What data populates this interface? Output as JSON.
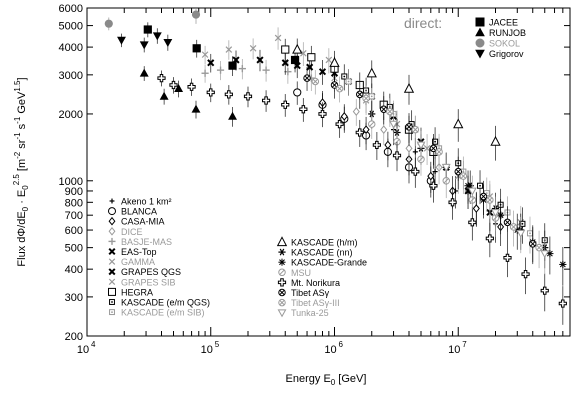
{
  "chart_data": {
    "type": "scatter",
    "title": "",
    "xlabel": "Energy E₀ [GeV]",
    "ylabel": "Flux dΦ/dE₀ · E₀^2.5 [m⁻² sr⁻¹ s⁻¹ GeV¹·⁵]",
    "ylabel_parts": {
      "main": "Flux dΦ/dE",
      "sub0": "0",
      "dot": " · E",
      "sub1": "0",
      "sup1": "2.5",
      "units_a": " [m",
      "sup2": "-2",
      "units_b": " sr",
      "sup3": "-1",
      "units_c": " s",
      "sup4": "-1",
      "units_d": " GeV",
      "sup5": "1.5",
      "units_e": "]"
    },
    "xlabel_parts": {
      "main": "Energy E",
      "sub": "0",
      "units": " [GeV]"
    },
    "x_scale": "log",
    "y_scale": "log",
    "xlim": [
      10000,
      80000000
    ],
    "ylim": [
      200,
      6000
    ],
    "x_tick_labels": [
      {
        "value": 10000,
        "base": "10",
        "exp": "4"
      },
      {
        "value": 100000,
        "base": "10",
        "exp": "5"
      },
      {
        "value": 1000000,
        "base": "10",
        "exp": "6"
      },
      {
        "value": 10000000,
        "base": "10",
        "exp": "7"
      }
    ],
    "y_tick_labels": [
      {
        "value": 200,
        "label": "200"
      },
      {
        "value": 300,
        "label": "300"
      },
      {
        "value": 400,
        "label": "400"
      },
      {
        "value": 500,
        "label": "500"
      },
      {
        "value": 600,
        "label": "600"
      },
      {
        "value": 700,
        "label": "700"
      },
      {
        "value": 800,
        "label": "800"
      },
      {
        "value": 900,
        "label": "900"
      },
      {
        "value": 1000,
        "label": "1000"
      },
      {
        "value": 2000,
        "label": "2000"
      },
      {
        "value": 3000,
        "label": "3000"
      },
      {
        "value": 4000,
        "label": "4000"
      },
      {
        "value": 5000,
        "label": "5000"
      },
      {
        "value": 6000,
        "label": "6000"
      }
    ],
    "grid": false,
    "direct_legend_title": "direct:",
    "legend_direct": [
      {
        "name": "JACEE",
        "marker": "square-filled",
        "color": "#000000"
      },
      {
        "name": "RUNJOB",
        "marker": "triangle-up-filled",
        "color": "#000000"
      },
      {
        "name": "SOKOL",
        "marker": "circle-filled",
        "color": "#8a8a8a"
      },
      {
        "name": "Grigorov",
        "marker": "triangle-down-filled",
        "color": "#000000"
      }
    ],
    "legend_left": [
      {
        "name": "Akeno 1 km²",
        "marker": "plus-small",
        "color": "#000000"
      },
      {
        "name": "BLANCA",
        "marker": "circle-open",
        "color": "#000000"
      },
      {
        "name": "CASA-MIA",
        "marker": "diamond-open",
        "color": "#000000"
      },
      {
        "name": "DICE",
        "marker": "diamond-open",
        "color": "#9a9a9a"
      },
      {
        "name": "BASJE-MAS",
        "marker": "plus",
        "color": "#9a9a9a"
      },
      {
        "name": "EAS-Top",
        "marker": "cross-bold",
        "color": "#000000"
      },
      {
        "name": "GAMMA",
        "marker": "cross",
        "color": "#9a9a9a"
      },
      {
        "name": "GRAPES QGS",
        "marker": "cross-bold",
        "color": "#000000"
      },
      {
        "name": "GRAPES SIB",
        "marker": "cross",
        "color": "#9a9a9a"
      },
      {
        "name": "HEGRA",
        "marker": "square-open",
        "color": "#000000"
      },
      {
        "name": "KASCADE (e/m QGS)",
        "marker": "square-dot",
        "color": "#000000"
      },
      {
        "name": "KASCADE (e/m SIB)",
        "marker": "square-dot",
        "color": "#9a9a9a"
      }
    ],
    "legend_right": [
      {
        "name": "KASCADE (h/m)",
        "marker": "triangle-up-open",
        "color": "#000000"
      },
      {
        "name": "KASCADE (nn)",
        "marker": "asterisk",
        "color": "#000000"
      },
      {
        "name": "KASCADE-Grande",
        "marker": "star",
        "color": "#000000"
      },
      {
        "name": "MSU",
        "marker": "circle-slash",
        "color": "#9a9a9a"
      },
      {
        "name": "Mt. Norikura",
        "marker": "open-cross",
        "color": "#000000"
      },
      {
        "name": "Tibet ASγ",
        "marker": "circle-cross",
        "color": "#000000"
      },
      {
        "name": "Tibet ASγ-III",
        "marker": "circle-cross",
        "color": "#9a9a9a"
      },
      {
        "name": "Tunka-25",
        "marker": "triangle-down-open",
        "color": "#9a9a9a"
      }
    ],
    "series": [
      {
        "name": "JACEE",
        "marker": "square-filled",
        "color": "#000000",
        "x": [
          31000,
          77000,
          150000,
          480000
        ],
        "y": [
          4800,
          3950,
          3300,
          3500
        ]
      },
      {
        "name": "RUNJOB",
        "marker": "triangle-up-filled",
        "color": "#000000",
        "x": [
          29000,
          42000,
          55000,
          76000,
          150000
        ],
        "y": [
          3050,
          2400,
          2600,
          2100,
          1950
        ]
      },
      {
        "name": "SOKOL",
        "marker": "circle-filled",
        "color": "#8a8a8a",
        "x": [
          15000,
          76000
        ],
        "y": [
          5100,
          5600
        ]
      },
      {
        "name": "Grigorov",
        "marker": "triangle-down-filled",
        "color": "#000000",
        "x": [
          19000,
          29000,
          37000,
          45000
        ],
        "y": [
          4300,
          4100,
          4500,
          4200
        ]
      },
      {
        "name": "Akeno 1 km²",
        "marker": "plus-small",
        "color": "#000000",
        "x": [
          3000000,
          4500000,
          6500000,
          9500000,
          14000000,
          20000000
        ],
        "y": [
          1700,
          1350,
          1100,
          900,
          760,
          640
        ]
      },
      {
        "name": "BLANCA",
        "marker": "circle-open",
        "color": "#000000",
        "x": [
          500000,
          800000,
          1200000,
          1800000,
          2700000,
          4000000,
          6000000
        ],
        "y": [
          2500,
          2200,
          1900,
          1600,
          1350,
          1150,
          1000
        ]
      },
      {
        "name": "CASA-MIA",
        "marker": "diamond-open",
        "color": "#000000",
        "x": [
          800000,
          1200000,
          1800000,
          2700000,
          4000000,
          6000000,
          9000000,
          14000000,
          22000000
        ],
        "y": [
          2250,
          1950,
          1700,
          1450,
          1250,
          1050,
          900,
          750,
          620
        ]
      },
      {
        "name": "DICE",
        "marker": "diamond-open",
        "color": "#9a9a9a",
        "x": [
          1500000,
          2500000,
          4000000,
          7000000,
          12000000,
          22000000
        ],
        "y": [
          2050,
          1700,
          1400,
          1150,
          900,
          700
        ]
      },
      {
        "name": "BASJE-MAS",
        "marker": "plus",
        "color": "#9a9a9a",
        "x": [
          90000,
          120000,
          180000,
          280000,
          420000,
          650000
        ],
        "y": [
          3050,
          3150,
          3200,
          3150,
          3100,
          2900
        ]
      },
      {
        "name": "EAS-Top",
        "marker": "cross-bold",
        "color": "#000000",
        "x": [
          500000,
          800000,
          1300000,
          2000000,
          3000000,
          5000000,
          8000000,
          12000000,
          18000000
        ],
        "y": [
          3300,
          3100,
          2800,
          2400,
          1950,
          1500,
          1150,
          900,
          720
        ]
      },
      {
        "name": "GAMMA",
        "marker": "cross",
        "color": "#9a9a9a",
        "x": [
          1000000,
          1800000,
          3200000,
          5600000,
          10000000,
          18000000,
          32000000
        ],
        "y": [
          2900,
          2300,
          1800,
          1400,
          1050,
          850,
          650
        ]
      },
      {
        "name": "GRAPES QGS",
        "marker": "cross-bold",
        "color": "#000000",
        "x": [
          100000,
          160000,
          250000,
          400000,
          630000,
          1000000
        ],
        "y": [
          3400,
          3500,
          3500,
          3400,
          3250,
          3050
        ]
      },
      {
        "name": "GRAPES SIB",
        "marker": "cross",
        "color": "#9a9a9a",
        "x": [
          90000,
          140000,
          220000,
          350000,
          560000,
          900000
        ],
        "y": [
          3700,
          3900,
          3950,
          4400,
          3750,
          3500
        ]
      },
      {
        "name": "HEGRA",
        "marker": "square-open",
        "color": "#000000",
        "x": [
          400000,
          650000,
          1000000,
          1600000,
          2500000,
          4000000,
          6300000
        ],
        "y": [
          3900,
          3600,
          3200,
          2700,
          2200,
          1700,
          1350
        ]
      },
      {
        "name": "KASCADE (e/m QGS)",
        "marker": "square-dot",
        "color": "#000000",
        "x": [
          1200000,
          1800000,
          2800000,
          4200000,
          6500000,
          10000000,
          15000000,
          22000000,
          33000000,
          50000000
        ],
        "y": [
          2950,
          2550,
          2150,
          1800,
          1500,
          1200,
          950,
          780,
          640,
          540
        ]
      },
      {
        "name": "KASCADE (e/m SIB)",
        "marker": "square-dot",
        "color": "#9a9a9a",
        "x": [
          1300000,
          2000000,
          3000000,
          4500000,
          7000000,
          11000000,
          17000000,
          25000000,
          38000000
        ],
        "y": [
          2800,
          2400,
          2000,
          1700,
          1400,
          1100,
          880,
          720,
          580
        ]
      },
      {
        "name": "KASCADE (h/m)",
        "marker": "triangle-up-open",
        "color": "#000000",
        "x": [
          500000,
          1000000,
          2000000,
          4000000,
          10000000,
          20000000
        ],
        "y": [
          3900,
          3400,
          3050,
          2600,
          1800,
          1500
        ]
      },
      {
        "name": "KASCADE (nn)",
        "marker": "asterisk",
        "color": "#000000",
        "x": [
          2000000,
          3200000,
          5000000,
          8000000,
          12500000,
          20000000,
          32000000,
          50000000
        ],
        "y": [
          2000,
          1650,
          1400,
          1150,
          950,
          750,
          600,
          500
        ]
      },
      {
        "name": "KASCADE-Grande",
        "marker": "star",
        "color": "#000000",
        "x": [
          12000000,
          16000000,
          22000000,
          30000000,
          40000000,
          55000000,
          70000000
        ],
        "y": [
          950,
          820,
          700,
          600,
          530,
          470,
          420
        ]
      },
      {
        "name": "MSU",
        "marker": "circle-slash",
        "color": "#9a9a9a",
        "x": [
          2000000,
          3200000,
          5000000,
          8000000,
          13000000,
          20000000
        ],
        "y": [
          1800,
          1500,
          1250,
          1000,
          820,
          680
        ]
      },
      {
        "name": "Mt. Norikura",
        "marker": "open-cross",
        "color": "#000000",
        "x": [
          40000,
          50000,
          70000,
          100000,
          140000,
          200000,
          280000,
          400000,
          560000,
          800000,
          1100000,
          1600000,
          2200000,
          3200000,
          4500000,
          6300000,
          9000000,
          13000000,
          18000000,
          25000000,
          35000000,
          50000000,
          70000000
        ],
        "y": [
          2900,
          2700,
          2650,
          2500,
          2450,
          2400,
          2300,
          2200,
          2100,
          2000,
          1800,
          1650,
          1450,
          1300,
          1100,
          950,
          800,
          650,
          550,
          450,
          380,
          320,
          280
        ]
      },
      {
        "name": "Tibet ASγ",
        "marker": "circle-cross",
        "color": "#000000",
        "x": [
          600000,
          1000000,
          1600000,
          2500000,
          4000000,
          6300000,
          10000000,
          16000000,
          25000000,
          40000000
        ],
        "y": [
          2900,
          2700,
          2450,
          2100,
          1750,
          1400,
          1100,
          850,
          650,
          520
        ]
      },
      {
        "name": "Tibet ASγ-III",
        "marker": "circle-cross",
        "color": "#9a9a9a",
        "x": [
          700000,
          1100000,
          1800000,
          2800000,
          4500000,
          7000000,
          11000000,
          18000000,
          28000000,
          45000000
        ],
        "y": [
          2800,
          2600,
          2350,
          2050,
          1700,
          1350,
          1050,
          820,
          620,
          500
        ]
      },
      {
        "name": "Tunka-25",
        "marker": "triangle-down-open",
        "color": "#9a9a9a",
        "x": [
          3000000,
          5000000,
          8000000,
          13000000,
          20000000,
          32000000,
          50000000
        ],
        "y": [
          1800,
          1450,
          1150,
          900,
          720,
          580,
          470
        ]
      }
    ]
  }
}
